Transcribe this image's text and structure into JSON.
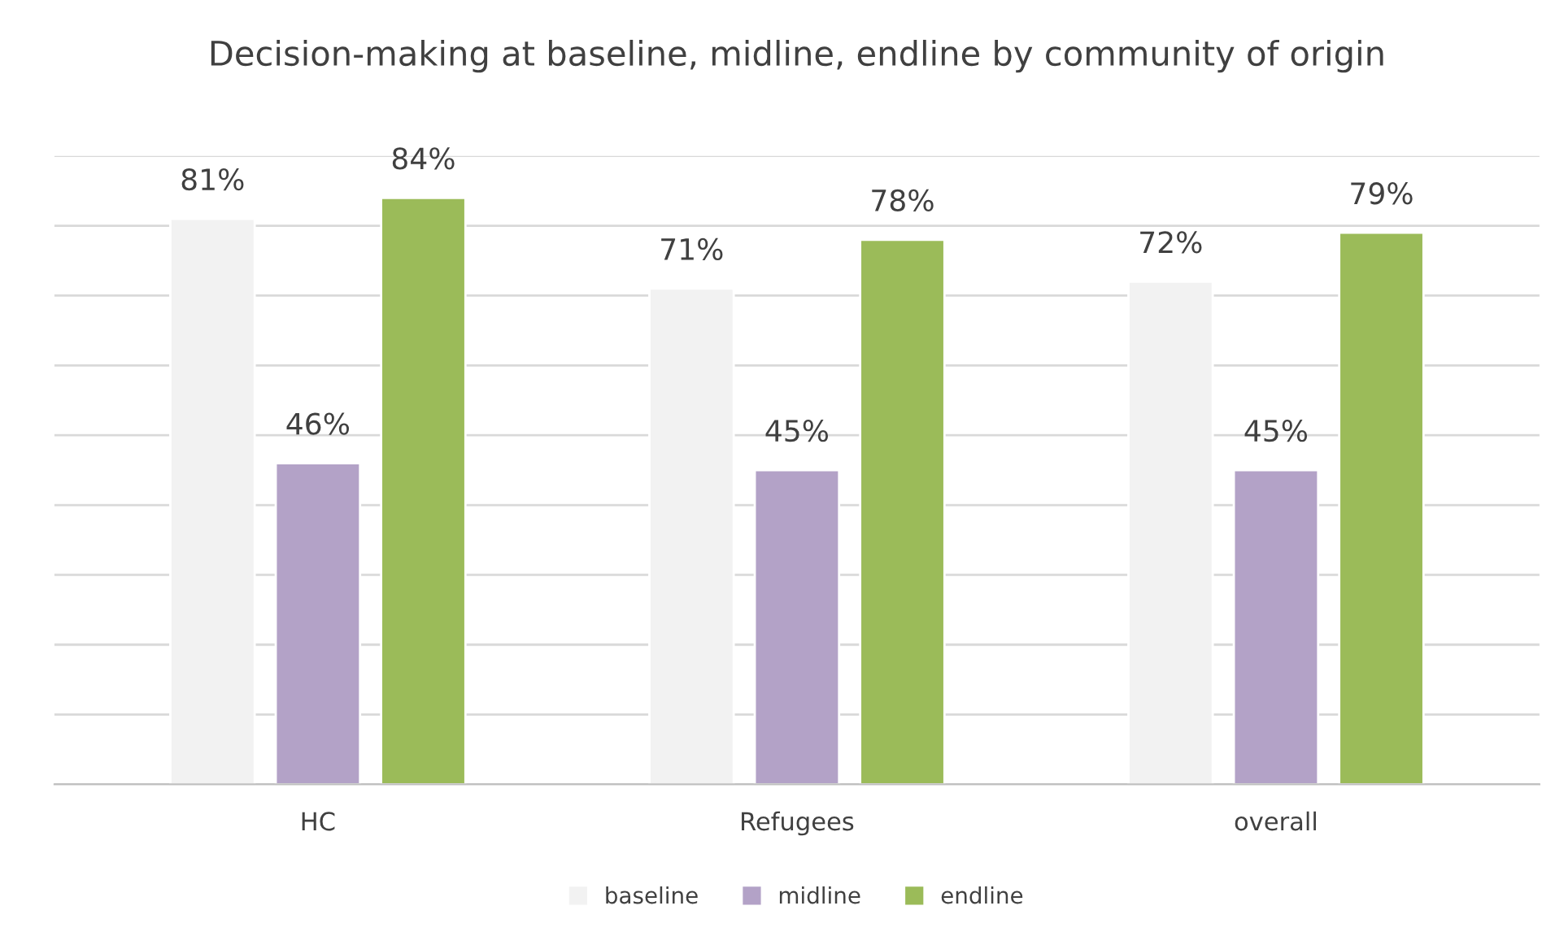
{
  "chart_data": {
    "type": "bar",
    "title": "Decision-making at baseline, midline, endline by community of origin",
    "categories": [
      "HC",
      "Refugees",
      "overall"
    ],
    "series": [
      {
        "name": "baseline",
        "color": "#f2f2f2",
        "values": [
          81,
          71,
          72
        ],
        "value_labels": [
          "81%",
          "71%",
          "72%"
        ]
      },
      {
        "name": "midline",
        "color": "#b3a2c7",
        "values": [
          46,
          45,
          45
        ],
        "value_labels": [
          "46%",
          "45%",
          "45%"
        ]
      },
      {
        "name": "endline",
        "color": "#9bbb59",
        "values": [
          84,
          78,
          79
        ],
        "value_labels": [
          "84%",
          "78%",
          "79%"
        ]
      }
    ],
    "ylim": [
      0,
      90
    ],
    "yticks": [
      {
        "value": 0,
        "label": null
      },
      {
        "value": 10,
        "label": null
      },
      {
        "value": 20,
        "label": null
      },
      {
        "value": 30,
        "label": null
      },
      {
        "value": 40,
        "label": null
      },
      {
        "value": 50,
        "label": null
      },
      {
        "value": 60,
        "label": null
      },
      {
        "value": 70,
        "label": null
      },
      {
        "value": 80,
        "label": null
      },
      {
        "value": 90,
        "label": null
      }
    ],
    "grid": "y",
    "legend": "bottom",
    "tick_labels": "x"
  }
}
